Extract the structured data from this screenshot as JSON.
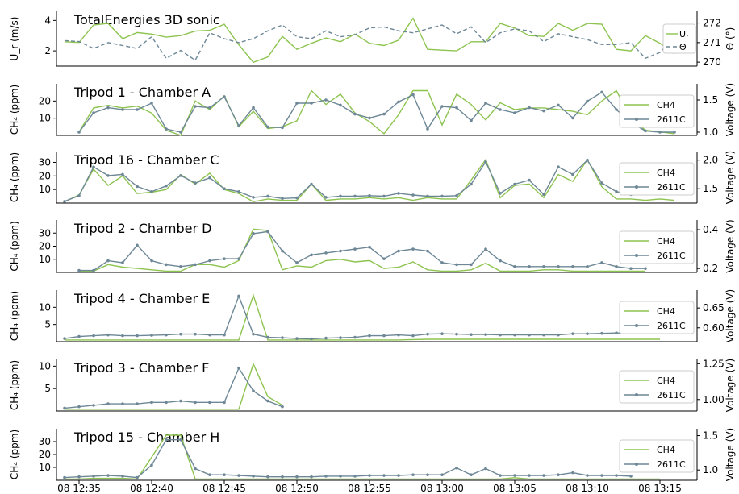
{
  "colors": {
    "ch4": "#8dc34f",
    "sensor": "#6d8796",
    "axis": "#000000",
    "legend_border": "#cccccc"
  },
  "chart_data": [
    {
      "type": "line",
      "title": "TotalEnergies 3D sonic",
      "x": [
        "12:36",
        "12:37",
        "12:38",
        "12:39",
        "12:40",
        "12:41",
        "12:42",
        "12:43",
        "12:44",
        "12:45",
        "12:46",
        "12:47",
        "12:48",
        "12:49",
        "12:50",
        "12:51",
        "12:52",
        "12:53",
        "12:54",
        "12:55",
        "12:56",
        "12:57",
        "12:58",
        "12:59",
        "13:00",
        "13:01",
        "13:02",
        "13:03",
        "13:04",
        "13:05",
        "13:06",
        "13:07",
        "13:08",
        "13:09",
        "13:10",
        "13:11",
        "13:12",
        "13:13",
        "13:14",
        "13:15",
        "13:16",
        "13:17"
      ],
      "ylabel_left": "U_r (m/s)",
      "ylim_left": [
        1,
        4.6
      ],
      "yticks_left": [
        "2",
        "4"
      ],
      "ytick_values_left": [
        2,
        4
      ],
      "ylabel_right": "Θ (°)",
      "ylim_right": [
        269.8,
        272.6
      ],
      "yticks_right": [
        "270",
        "271",
        "272"
      ],
      "ytick_values_right": [
        270,
        271,
        272
      ],
      "series": [
        {
          "name": "U_r",
          "axis": "left",
          "values": [
            2.6,
            2.55,
            3.7,
            3.8,
            2.8,
            3.2,
            3.1,
            2.9,
            3.0,
            3.3,
            3.35,
            3.75,
            2.4,
            1.25,
            1.6,
            2.95,
            2.1,
            2.5,
            2.85,
            2.6,
            3.1,
            2.5,
            2.35,
            2.7,
            4.15,
            2.1,
            2.05,
            2.0,
            2.6,
            2.6,
            3.8,
            3.5,
            3.0,
            2.95,
            3.8,
            3.35,
            3.8,
            3.75,
            2.1,
            2.0,
            3.0,
            2.5
          ],
          "values_tail": [
            1.8
          ]
        },
        {
          "name": "Θ",
          "axis": "left_dashed",
          "values": [
            271.1,
            271.05,
            270.7,
            271.0,
            270.85,
            270.7,
            271.3,
            270.2,
            270.6,
            270.1,
            271.5,
            271.2,
            271.0,
            271.2,
            271.6,
            271.9,
            271.3,
            271.2,
            271.6,
            271.3,
            271.4,
            271.75,
            271.8,
            271.6,
            271.5,
            271.7,
            271.9,
            271.45,
            271.8,
            271.0,
            271.5,
            271.7,
            271.6,
            271.05,
            271.45,
            271.3,
            271.15,
            270.9,
            270.9,
            271.0,
            270.2,
            270.5
          ]
        }
      ],
      "series_extra_right": [
        271.3,
        271.6
      ]
    },
    {
      "type": "line",
      "title": "Tripod 1 - Chamber A",
      "ylabel_left": "CH₄ (ppm)",
      "ylim_left": [
        0,
        30
      ],
      "yticks_left": [
        "10",
        "20"
      ],
      "ytick_values_left": [
        10,
        20
      ],
      "ylabel_right": "Voltage (V)",
      "ylim_right": [
        0.95,
        1.75
      ],
      "yticks_right": [
        "1.0",
        "1.5"
      ],
      "ytick_values_right": [
        1.0,
        1.5
      ],
      "x_start_index": 1,
      "series": [
        {
          "name": "CH4",
          "values": [
            2,
            16,
            17.5,
            16,
            17,
            13,
            3,
            0,
            20,
            15,
            23,
            5,
            14,
            4,
            5,
            8.5,
            26,
            18,
            24,
            13,
            8,
            1,
            12,
            26,
            26,
            6,
            24,
            18,
            9,
            19,
            15,
            16,
            16,
            15,
            14,
            12,
            20,
            26,
            10,
            3,
            2,
            1
          ]
        },
        {
          "name": "2611C",
          "values": [
            1.0,
            1.3,
            1.38,
            1.35,
            1.35,
            1.45,
            1.05,
            1.0,
            1.4,
            1.38,
            1.55,
            1.1,
            1.38,
            1.08,
            1.07,
            1.45,
            1.45,
            1.5,
            1.42,
            1.28,
            1.22,
            1.28,
            1.47,
            1.58,
            1.05,
            1.4,
            1.38,
            1.18,
            1.45,
            1.35,
            1.3,
            1.38,
            1.33,
            1.42,
            1.22,
            1.48,
            1.62,
            1.35,
            1.15,
            1.02,
            1.0,
            1.0
          ]
        }
      ]
    },
    {
      "type": "line",
      "title": "Tripod 16 - Chamber C",
      "ylabel_left": "CH₄ (ppm)",
      "ylim_left": [
        0,
        38
      ],
      "yticks_left": [
        "10",
        "20",
        "30"
      ],
      "ytick_values_left": [
        10,
        20,
        30
      ],
      "ylabel_right": "Voltage (V)",
      "ylim_right": [
        1.25,
        2.15
      ],
      "yticks_right": [
        "1.5",
        "2.0"
      ],
      "ytick_values_right": [
        1.5,
        2.0
      ],
      "series": [
        {
          "name": "CH4",
          "values": [
            1,
            6,
            25,
            13,
            20,
            7,
            8,
            10,
            21,
            14,
            22,
            10,
            7,
            1,
            3,
            2,
            2,
            14,
            2,
            3,
            3,
            4,
            3,
            4,
            2,
            4,
            3,
            3,
            17,
            32,
            4,
            13,
            14,
            4,
            21,
            16,
            32,
            12,
            3,
            3,
            2,
            3,
            2
          ]
        },
        {
          "name": "2611C",
          "values": [
            1.28,
            1.38,
            1.88,
            1.73,
            1.75,
            1.54,
            1.45,
            1.55,
            1.73,
            1.6,
            1.69,
            1.5,
            1.45,
            1.35,
            1.37,
            1.33,
            1.34,
            1.58,
            1.35,
            1.37,
            1.37,
            1.38,
            1.37,
            1.42,
            1.39,
            1.37,
            1.37,
            1.38,
            1.58,
            1.97,
            1.42,
            1.58,
            1.65,
            1.4,
            1.88,
            1.75,
            2.0,
            1.6,
            1.45,
            1.4,
            1.43,
            1.42,
            1.42
          ]
        }
      ]
    },
    {
      "type": "line",
      "title": "Tripod 2 - Chamber D",
      "ylabel_left": "CH₄ (ppm)",
      "ylim_left": [
        0,
        40
      ],
      "yticks_left": [
        "10",
        "20",
        "30"
      ],
      "ytick_values_left": [
        10,
        20,
        30
      ],
      "ylabel_right": "Voltage (V)",
      "ylim_right": [
        0.18,
        0.45
      ],
      "yticks_right": [
        "0.2",
        "0.4"
      ],
      "ytick_values_right": [
        0.2,
        0.4
      ],
      "x_start_index": 1,
      "series": [
        {
          "name": "CH4",
          "values": [
            1,
            1,
            6,
            4,
            3,
            2,
            1,
            1,
            6,
            6,
            4,
            9,
            33,
            32,
            2,
            5,
            4,
            9,
            10,
            8,
            9,
            3,
            4,
            8,
            2,
            1,
            1,
            2,
            7,
            1,
            1,
            1,
            2,
            2,
            1,
            1,
            1,
            1,
            1,
            1
          ]
        },
        {
          "name": "2611C",
          "values": [
            0.19,
            0.19,
            0.24,
            0.23,
            0.32,
            0.24,
            0.22,
            0.21,
            0.22,
            0.24,
            0.25,
            0.25,
            0.38,
            0.39,
            0.29,
            0.23,
            0.27,
            0.28,
            0.29,
            0.3,
            0.31,
            0.25,
            0.29,
            0.3,
            0.29,
            0.23,
            0.22,
            0.22,
            0.3,
            0.24,
            0.21,
            0.21,
            0.21,
            0.21,
            0.21,
            0.21,
            0.23,
            0.21,
            0.2,
            0.2
          ]
        }
      ]
    },
    {
      "type": "line",
      "title": "Tripod 4 - Chamber E",
      "ylabel_left": "CH₄ (ppm)",
      "ylim_left": [
        0,
        15
      ],
      "yticks_left": [
        "5",
        "10"
      ],
      "ytick_values_left": [
        5,
        10
      ],
      "ylabel_right": "Voltage (V)",
      "ylim_right": [
        0.565,
        0.695
      ],
      "yticks_right": [
        "0.60",
        "0.65"
      ],
      "ytick_values_right": [
        0.6,
        0.65
      ],
      "series": [
        {
          "name": "CH4",
          "values": [
            0.5,
            0.5,
            0.5,
            0.5,
            0.5,
            0.5,
            0.5,
            0.5,
            0.5,
            0.5,
            0.5,
            0.5,
            0.5,
            13.5,
            0.5,
            0.5,
            0.5,
            0.5,
            0.5,
            0.5,
            0.5,
            0.5,
            0.5,
            0.5,
            0.6,
            0.7,
            0.7,
            0.7,
            0.7,
            0.7,
            0.7,
            0.7,
            0.7,
            0.7,
            0.7,
            0.7,
            0.7,
            0.7,
            0.7,
            0.7,
            0.7,
            0.7
          ]
        },
        {
          "name": "2611C",
          "values": [
            0.573,
            0.578,
            0.58,
            0.582,
            0.58,
            0.58,
            0.581,
            0.582,
            0.584,
            0.584,
            0.582,
            0.582,
            0.68,
            0.584,
            0.576,
            0.575,
            0.573,
            0.572,
            0.574,
            0.575,
            0.576,
            0.58,
            0.58,
            0.582,
            0.58,
            0.584,
            0.585,
            0.584,
            0.583,
            0.583,
            0.582,
            0.582,
            0.582,
            0.582,
            0.582,
            0.585,
            0.585,
            0.586,
            0.587,
            0.587,
            0.587
          ]
        }
      ]
    },
    {
      "type": "line",
      "title": "Tripod 3 - Chamber F",
      "ylabel_left": "CH₄ (ppm)",
      "ylim_left": [
        0,
        11.5
      ],
      "yticks_left": [
        "5",
        "10"
      ],
      "ytick_values_left": [
        5,
        10
      ],
      "ylabel_right": "Voltage (V)",
      "ylim_right": [
        0.92,
        1.28
      ],
      "yticks_right": [
        "1.00",
        "1.25"
      ],
      "ytick_values_right": [
        1.0,
        1.25
      ],
      "series": [
        {
          "name": "CH4",
          "values": [
            0.4,
            0.4,
            0.4,
            0.4,
            0.4,
            0.4,
            0.4,
            0.4,
            0.4,
            0.4,
            0.4,
            0.4,
            0.4,
            10.5,
            3.2,
            1.3
          ]
        },
        {
          "name": "2611C",
          "values": [
            0.94,
            0.95,
            0.96,
            0.97,
            0.97,
            0.97,
            0.98,
            0.98,
            0.99,
            0.98,
            0.98,
            0.98,
            1.22,
            1.06,
            0.99,
            0.95
          ]
        }
      ]
    },
    {
      "type": "line",
      "title": "Tripod 15 - Chamber H",
      "ylabel_left": "CH₄ (ppm)",
      "ylim_left": [
        0,
        40
      ],
      "yticks_left": [
        "10",
        "20",
        "30"
      ],
      "ytick_values_left": [
        10,
        20,
        30
      ],
      "ylabel_right": "Voltage (V)",
      "ylim_right": [
        0.85,
        1.6
      ],
      "yticks_right": [
        "1.0",
        "1.5"
      ],
      "ytick_values_right": [
        1.0,
        1.5
      ],
      "series": [
        {
          "name": "CH4",
          "values": [
            1,
            1,
            1.5,
            1.5,
            1.5,
            1,
            18,
            35,
            35,
            1,
            1,
            1,
            1,
            1,
            1,
            1,
            1,
            1,
            1,
            1,
            1,
            1,
            1,
            1,
            1,
            1,
            1,
            1,
            1,
            1,
            1,
            2,
            1,
            1,
            1,
            1,
            1,
            1,
            1,
            1,
            1,
            1
          ]
        },
        {
          "name": "2611C",
          "values": [
            0.89,
            0.9,
            0.91,
            0.92,
            0.91,
            0.89,
            1.07,
            1.44,
            1.44,
            1.02,
            0.93,
            0.93,
            0.92,
            0.91,
            0.9,
            0.9,
            0.9,
            0.9,
            0.91,
            0.91,
            0.91,
            0.92,
            0.92,
            0.92,
            0.93,
            0.93,
            0.93,
            1.03,
            0.93,
            1.02,
            0.92,
            0.92,
            0.92,
            0.92,
            0.93,
            0.96,
            0.92,
            0.92,
            0.92,
            0.91
          ]
        }
      ]
    }
  ],
  "x_axis": {
    "ticks": [
      "08 12:35",
      "08 12:40",
      "08 12:45",
      "08 12:50",
      "08 12:55",
      "08 13:00",
      "08 13:05",
      "08 13:10",
      "08 13:15"
    ]
  },
  "legend": {
    "ch4": "CH4",
    "sensor": "2611C",
    "wind": "U",
    "wind_sub": "r",
    "theta": "Θ"
  }
}
